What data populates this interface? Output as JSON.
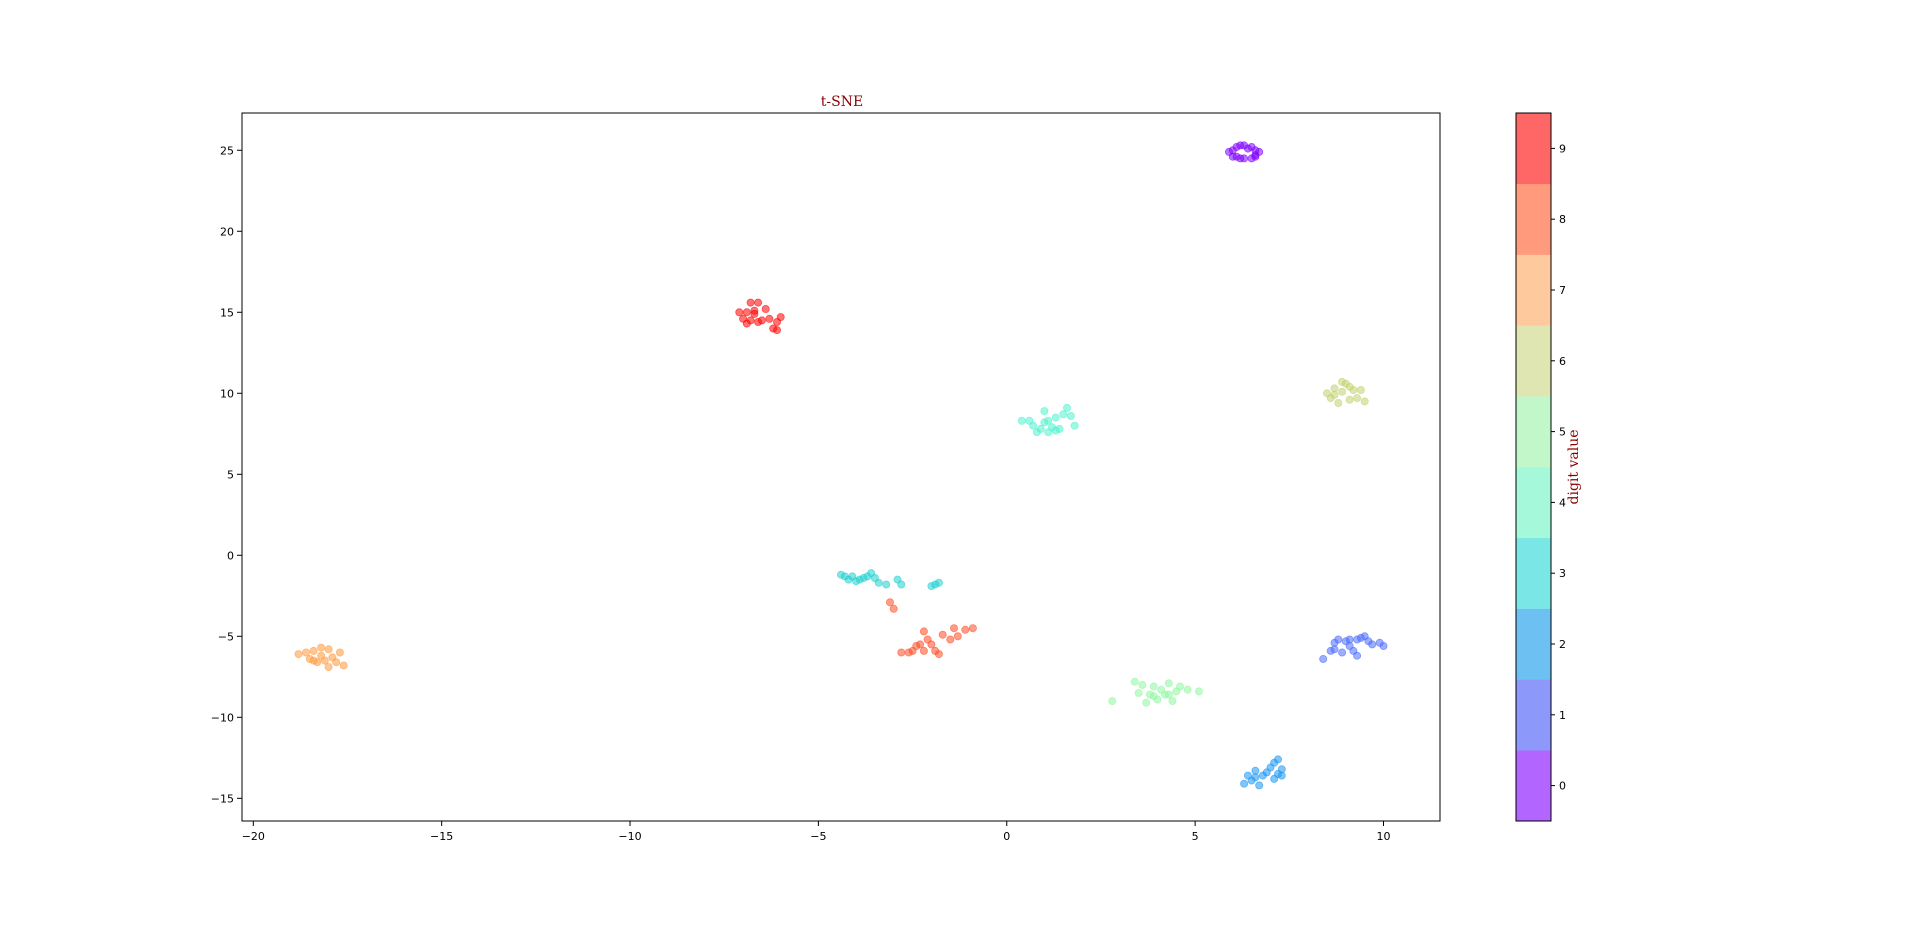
{
  "chart_data": {
    "type": "scatter",
    "title": "t-SNE",
    "xlabel": "",
    "ylabel": "",
    "xlim": [
      -20.3,
      11.5
    ],
    "ylim": [
      -16.4,
      27.3
    ],
    "xticks": [
      -20,
      -15,
      -10,
      -5,
      0,
      5,
      10
    ],
    "yticks": [
      -15,
      -10,
      -5,
      0,
      5,
      10,
      15,
      20,
      25
    ],
    "grid": false,
    "colorbar": {
      "label": "digit value",
      "ticks": [
        "0",
        "1",
        "2",
        "3",
        "4",
        "5",
        "6",
        "7",
        "8",
        "9"
      ],
      "colors": [
        "#b366ff",
        "#8c99fb",
        "#6cc1f2",
        "#7ae6e6",
        "#a5f9da",
        "#c2f8c9",
        "#e0e6b2",
        "#ffc99e",
        "#ff9b7c",
        "#ff6666"
      ]
    },
    "series": [
      {
        "digit": "0",
        "color": "#8000ff",
        "points": [
          [
            6.0,
            25.0
          ],
          [
            6.1,
            25.2
          ],
          [
            6.2,
            25.3
          ],
          [
            6.3,
            25.3
          ],
          [
            6.5,
            25.2
          ],
          [
            6.6,
            25.0
          ],
          [
            6.7,
            24.9
          ],
          [
            6.6,
            24.6
          ],
          [
            6.5,
            24.5
          ],
          [
            6.3,
            24.5
          ],
          [
            6.2,
            24.5
          ],
          [
            6.0,
            24.6
          ],
          [
            5.9,
            24.9
          ],
          [
            6.4,
            25.1
          ],
          [
            6.1,
            24.6
          ],
          [
            6.6,
            24.7
          ]
        ]
      },
      {
        "digit": "1",
        "color": "#4a6bfb",
        "points": [
          [
            8.4,
            -6.4
          ],
          [
            8.6,
            -5.9
          ],
          [
            8.7,
            -5.4
          ],
          [
            8.8,
            -5.2
          ],
          [
            9.0,
            -5.3
          ],
          [
            9.1,
            -5.6
          ],
          [
            9.2,
            -5.9
          ],
          [
            9.3,
            -6.2
          ],
          [
            9.4,
            -5.1
          ],
          [
            9.5,
            -5.0
          ],
          [
            9.6,
            -5.3
          ],
          [
            9.7,
            -5.5
          ],
          [
            9.9,
            -5.4
          ],
          [
            10.0,
            -5.6
          ],
          [
            8.9,
            -6.0
          ],
          [
            9.1,
            -5.2
          ],
          [
            8.7,
            -5.8
          ],
          [
            9.3,
            -5.2
          ]
        ]
      },
      {
        "digit": "2",
        "color": "#1996f3",
        "points": [
          [
            6.3,
            -14.1
          ],
          [
            6.4,
            -13.6
          ],
          [
            6.5,
            -13.9
          ],
          [
            6.6,
            -13.3
          ],
          [
            6.7,
            -14.2
          ],
          [
            6.8,
            -13.6
          ],
          [
            6.9,
            -13.4
          ],
          [
            7.0,
            -13.1
          ],
          [
            7.1,
            -12.8
          ],
          [
            7.2,
            -12.6
          ],
          [
            7.2,
            -13.5
          ],
          [
            7.3,
            -13.2
          ],
          [
            7.1,
            -13.8
          ],
          [
            6.6,
            -13.7
          ],
          [
            7.3,
            -13.6
          ]
        ]
      },
      {
        "digit": "3",
        "color": "#1fd0d0",
        "points": [
          [
            -4.4,
            -1.2
          ],
          [
            -4.3,
            -1.3
          ],
          [
            -4.2,
            -1.5
          ],
          [
            -4.0,
            -1.6
          ],
          [
            -3.9,
            -1.5
          ],
          [
            -3.8,
            -1.4
          ],
          [
            -3.7,
            -1.3
          ],
          [
            -3.6,
            -1.1
          ],
          [
            -3.5,
            -1.4
          ],
          [
            -3.4,
            -1.7
          ],
          [
            -3.2,
            -1.8
          ],
          [
            -2.9,
            -1.5
          ],
          [
            -2.8,
            -1.8
          ],
          [
            -2.0,
            -1.9
          ],
          [
            -1.9,
            -1.8
          ],
          [
            -1.8,
            -1.7
          ],
          [
            -4.1,
            -1.3
          ]
        ]
      },
      {
        "digit": "4",
        "color": "#4cf2ce",
        "points": [
          [
            0.4,
            8.3
          ],
          [
            0.6,
            8.3
          ],
          [
            0.7,
            8.0
          ],
          [
            0.8,
            7.6
          ],
          [
            0.9,
            7.8
          ],
          [
            1.0,
            8.9
          ],
          [
            1.1,
            8.3
          ],
          [
            1.1,
            7.6
          ],
          [
            1.2,
            7.9
          ],
          [
            1.3,
            8.5
          ],
          [
            1.4,
            7.8
          ],
          [
            1.5,
            8.7
          ],
          [
            1.6,
            9.1
          ],
          [
            1.7,
            8.6
          ],
          [
            1.8,
            8.0
          ],
          [
            1.0,
            8.2
          ],
          [
            1.3,
            7.7
          ]
        ]
      },
      {
        "digit": "5",
        "color": "#8ef8a0",
        "points": [
          [
            2.8,
            -9.0
          ],
          [
            3.4,
            -7.8
          ],
          [
            3.5,
            -8.5
          ],
          [
            3.6,
            -8.0
          ],
          [
            3.7,
            -9.1
          ],
          [
            3.8,
            -8.6
          ],
          [
            3.9,
            -8.1
          ],
          [
            4.0,
            -8.9
          ],
          [
            4.1,
            -8.3
          ],
          [
            4.2,
            -8.6
          ],
          [
            4.3,
            -7.9
          ],
          [
            4.4,
            -9.0
          ],
          [
            4.5,
            -8.4
          ],
          [
            4.6,
            -8.1
          ],
          [
            4.8,
            -8.3
          ],
          [
            5.1,
            -8.4
          ],
          [
            3.9,
            -8.7
          ],
          [
            4.3,
            -8.6
          ]
        ]
      },
      {
        "digit": "6",
        "color": "#c1d26f",
        "points": [
          [
            8.5,
            10.0
          ],
          [
            8.6,
            9.7
          ],
          [
            8.7,
            10.3
          ],
          [
            8.8,
            9.4
          ],
          [
            8.9,
            10.1
          ],
          [
            9.0,
            10.6
          ],
          [
            9.1,
            9.6
          ],
          [
            9.2,
            10.2
          ],
          [
            9.3,
            9.7
          ],
          [
            9.4,
            10.2
          ],
          [
            9.5,
            9.5
          ],
          [
            8.7,
            9.9
          ],
          [
            9.1,
            10.4
          ],
          [
            8.9,
            10.7
          ]
        ]
      },
      {
        "digit": "7",
        "color": "#ff993d",
        "points": [
          [
            -18.8,
            -6.1
          ],
          [
            -18.6,
            -6.0
          ],
          [
            -18.5,
            -6.4
          ],
          [
            -18.4,
            -5.9
          ],
          [
            -18.3,
            -6.6
          ],
          [
            -18.2,
            -6.2
          ],
          [
            -18.2,
            -5.7
          ],
          [
            -18.1,
            -6.5
          ],
          [
            -18.0,
            -5.8
          ],
          [
            -17.9,
            -6.3
          ],
          [
            -17.8,
            -6.6
          ],
          [
            -17.7,
            -6.0
          ],
          [
            -17.6,
            -6.8
          ],
          [
            -18.4,
            -6.5
          ],
          [
            -18.0,
            -6.9
          ]
        ]
      },
      {
        "digit": "8",
        "color": "#ff4d26",
        "points": [
          [
            -3.1,
            -2.9
          ],
          [
            -3.0,
            -3.3
          ],
          [
            -2.8,
            -6.0
          ],
          [
            -2.6,
            -6.0
          ],
          [
            -2.5,
            -5.9
          ],
          [
            -2.4,
            -5.6
          ],
          [
            -2.3,
            -5.5
          ],
          [
            -2.2,
            -5.9
          ],
          [
            -2.1,
            -5.2
          ],
          [
            -2.2,
            -4.7
          ],
          [
            -2.0,
            -5.5
          ],
          [
            -1.9,
            -5.9
          ],
          [
            -1.8,
            -6.1
          ],
          [
            -1.7,
            -4.9
          ],
          [
            -1.5,
            -5.2
          ],
          [
            -1.4,
            -4.5
          ],
          [
            -1.3,
            -5.0
          ],
          [
            -1.1,
            -4.6
          ],
          [
            -0.9,
            -4.5
          ]
        ]
      },
      {
        "digit": "9",
        "color": "#ff0000",
        "points": [
          [
            -7.1,
            15.0
          ],
          [
            -7.0,
            14.6
          ],
          [
            -6.9,
            15.0
          ],
          [
            -6.8,
            15.6
          ],
          [
            -6.8,
            14.5
          ],
          [
            -6.7,
            14.9
          ],
          [
            -6.6,
            15.6
          ],
          [
            -6.6,
            14.4
          ],
          [
            -6.5,
            14.5
          ],
          [
            -6.4,
            15.2
          ],
          [
            -6.3,
            14.6
          ],
          [
            -6.2,
            14.0
          ],
          [
            -6.1,
            13.9
          ],
          [
            -6.1,
            14.4
          ],
          [
            -6.0,
            14.7
          ],
          [
            -6.9,
            14.3
          ],
          [
            -6.7,
            15.1
          ]
        ]
      }
    ]
  }
}
